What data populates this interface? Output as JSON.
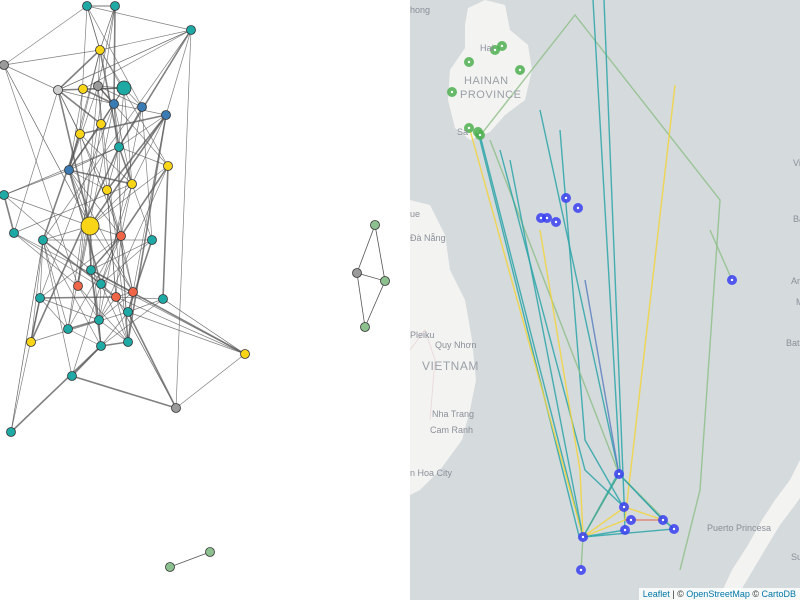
{
  "graph": {
    "node_colors": {
      "teal": "#1fa9a5",
      "yellow": "#f8d516",
      "blue": "#3a7bb3",
      "red": "#ef6548",
      "gray": "#9a9a9a",
      "lightgray": "#cfcfcf",
      "green": "#8cc08f"
    },
    "edge_color": "#555555"
  },
  "map": {
    "labels": {
      "city_top": "hong",
      "haikou": "Hai",
      "province": [
        "HAINAN",
        "PROVINCE"
      ],
      "sanya": "Sa",
      "hue": "ue",
      "danang": "Đà Nẵng",
      "pleiku": "Pleiku",
      "quynhon": "Quy Nhơn",
      "country": "VIETNAM",
      "nhatrang": "Nha Trang",
      "camranh": "Cam Ranh",
      "bienhoa": "n Hoa City",
      "puerto": "Puerto Princesa",
      "edge1": "Vi",
      "edge2": "Ba",
      "edge3": "An",
      "edge4": "M",
      "edge5": "Bata",
      "edge6": "Su"
    },
    "attribution": {
      "leaflet": "Leaflet",
      "sep": " | © ",
      "osm": "OpenStreetMap",
      "carto_prefix": " © ",
      "carto": "CartoDB"
    },
    "colors": {
      "sea": "#d5dadd",
      "land": "#f3f3f1",
      "marker_blue": "#3a3ff0",
      "marker_green": "#4caf50",
      "line_teal": "#2aa5a8",
      "line_yellow": "#f2d43a",
      "line_green": "#8fbf8a",
      "line_blue": "#5a7fc0",
      "line_red": "#e07a6a"
    }
  }
}
